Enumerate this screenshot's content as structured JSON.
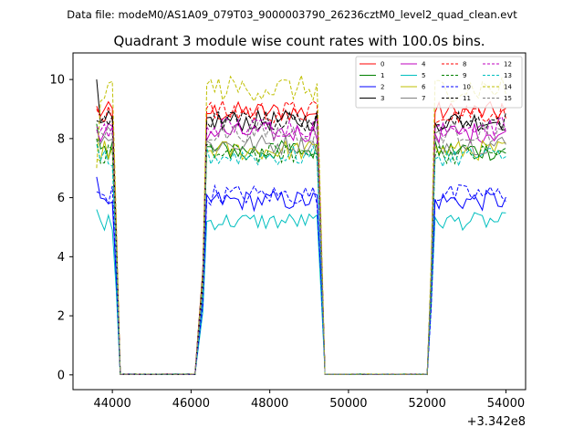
{
  "suptitle": "Data file: modeM0/AS1A09_079T03_9000003790_26236cztM0_level2_quad_clean.evt",
  "chart_data": {
    "type": "line",
    "title": "Quadrant 3 module wise count rates with 100.0s bins.",
    "xlabel": "",
    "ylabel": "",
    "x_offset_label": "+3.342e8",
    "xlim": [
      43000,
      54500
    ],
    "ylim": [
      -0.5,
      10.9
    ],
    "x_ticks": [
      44000,
      46000,
      48000,
      50000,
      52000,
      54000
    ],
    "x_tick_labels": [
      "44000",
      "46000",
      "48000",
      "50000",
      "52000",
      "54000"
    ],
    "y_ticks": [
      0,
      2,
      4,
      6,
      8,
      10
    ],
    "y_tick_labels": [
      "0",
      "2",
      "4",
      "6",
      "8",
      "10"
    ],
    "legend_position": "top-right",
    "series": [
      {
        "name": "0",
        "color": "#ff0000",
        "dash": "solid",
        "level": 8.9,
        "peak": 8.7,
        "start": 9.1,
        "noise": 0.35
      },
      {
        "name": "1",
        "color": "#008000",
        "dash": "solid",
        "level": 7.6,
        "peak": 8.0,
        "start": 8.5,
        "noise": 0.35
      },
      {
        "name": "2",
        "color": "#0000ff",
        "dash": "solid",
        "level": 5.9,
        "peak": 6.0,
        "start": 6.7,
        "noise": 0.35
      },
      {
        "name": "3",
        "color": "#000000",
        "dash": "solid",
        "level": 8.6,
        "peak": 9.0,
        "start": 10.0,
        "noise": 0.35
      },
      {
        "name": "4",
        "color": "#bf00bf",
        "dash": "solid",
        "level": 8.2,
        "peak": 8.2,
        "start": 8.3,
        "noise": 0.35
      },
      {
        "name": "5",
        "color": "#00bfbf",
        "dash": "solid",
        "level": 5.2,
        "peak": 5.3,
        "start": 5.6,
        "noise": 0.3
      },
      {
        "name": "6",
        "color": "#bfbf00",
        "dash": "solid",
        "level": 7.6,
        "peak": 7.8,
        "start": 7.3,
        "noise": 0.35
      },
      {
        "name": "7",
        "color": "#808080",
        "dash": "solid",
        "level": 7.8,
        "peak": 7.9,
        "start": 8.0,
        "noise": 0.35
      },
      {
        "name": "8",
        "color": "#ff0000",
        "dash": "dashed",
        "level": 8.9,
        "peak": 8.9,
        "start": 9.0,
        "noise": 0.4
      },
      {
        "name": "9",
        "color": "#008000",
        "dash": "dashed",
        "level": 7.5,
        "peak": 7.7,
        "start": 8.0,
        "noise": 0.35
      },
      {
        "name": "10",
        "color": "#0000ff",
        "dash": "dashed",
        "level": 6.1,
        "peak": 6.2,
        "start": 6.2,
        "noise": 0.35
      },
      {
        "name": "11",
        "color": "#000000",
        "dash": "dashed",
        "level": 8.6,
        "peak": 8.9,
        "start": 8.6,
        "noise": 0.35
      },
      {
        "name": "12",
        "color": "#bf00bf",
        "dash": "dashed",
        "level": 8.4,
        "peak": 8.5,
        "start": 8.4,
        "noise": 0.35
      },
      {
        "name": "13",
        "color": "#00bfbf",
        "dash": "dashed",
        "level": 7.4,
        "peak": 7.5,
        "start": 7.8,
        "noise": 0.35
      },
      {
        "name": "14",
        "color": "#bfbf00",
        "dash": "dashed",
        "level": 9.7,
        "peak": 9.4,
        "start": 7.0,
        "noise": 0.45
      },
      {
        "name": "15",
        "color": "#808080",
        "dash": "dashed",
        "level": 8.2,
        "peak": 8.3,
        "start": 8.2,
        "noise": 0.35
      }
    ],
    "segments": [
      {
        "x_start": 43600,
        "x_end": 44100,
        "type": "on"
      },
      {
        "x_start": 44200,
        "x_end": 46100,
        "type": "zero"
      },
      {
        "x_start": 46300,
        "x_end": 49300,
        "type": "on"
      },
      {
        "x_start": 49400,
        "x_end": 49900,
        "type": "spike"
      },
      {
        "x_start": 50100,
        "x_end": 52000,
        "type": "zero"
      },
      {
        "x_start": 52100,
        "x_end": 54000,
        "type": "on"
      }
    ]
  }
}
